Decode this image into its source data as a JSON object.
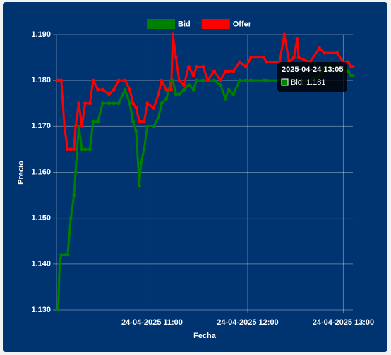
{
  "chart_data": {
    "type": "line",
    "legend": "top",
    "grid": true,
    "x_label": "Fecha",
    "y_label": "Precio",
    "x": [
      "2025-04-24 10:01",
      "2025-04-24 10:02",
      "2025-04-24 10:03",
      "2025-04-24 10:05",
      "2025-04-24 10:07",
      "2025-04-24 10:09",
      "2025-04-24 10:11",
      "2025-04-24 10:12",
      "2025-04-24 10:14",
      "2025-04-24 10:16",
      "2025-04-24 10:18",
      "2025-04-24 10:21",
      "2025-04-24 10:23",
      "2025-04-24 10:26",
      "2025-04-24 10:29",
      "2025-04-24 10:33",
      "2025-04-24 10:36",
      "2025-04-24 10:39",
      "2025-04-24 10:43",
      "2025-04-24 10:46",
      "2025-04-24 10:48",
      "2025-04-24 10:50",
      "2025-04-24 10:52",
      "2025-04-24 10:53",
      "2025-04-24 10:55",
      "2025-04-24 10:57",
      "2025-04-24 11:01",
      "2025-04-24 11:04",
      "2025-04-24 11:06",
      "2025-04-24 11:09",
      "2025-04-24 11:12",
      "2025-04-24 11:13",
      "2025-04-24 11:15",
      "2025-04-24 11:17",
      "2025-04-24 11:20",
      "2025-04-24 11:23",
      "2025-04-24 11:26",
      "2025-04-24 11:28",
      "2025-04-24 11:32",
      "2025-04-24 11:35",
      "2025-04-24 11:39",
      "2025-04-24 11:43",
      "2025-04-24 11:46",
      "2025-04-24 11:48",
      "2025-04-24 11:51",
      "2025-04-24 11:55",
      "2025-04-24 11:59",
      "2025-04-24 12:02",
      "2025-04-24 12:10",
      "2025-04-24 12:12",
      "2025-04-24 12:20",
      "2025-04-24 12:23",
      "2025-04-24 12:26",
      "2025-04-24 12:29",
      "2025-04-24 12:31",
      "2025-04-24 12:32",
      "2025-04-24 12:39",
      "2025-04-24 12:45",
      "2025-04-24 12:48",
      "2025-04-24 12:56",
      "2025-04-24 13:00",
      "2025-04-24 13:03",
      "2025-04-24 13:05",
      "2025-04-24 13:06"
    ],
    "series": [
      {
        "name": "Bid",
        "color": "#008000",
        "values": [
          1.13,
          1.14,
          1.142,
          1.142,
          1.142,
          1.15,
          1.155,
          1.16,
          1.17,
          1.165,
          1.165,
          1.165,
          1.171,
          1.171,
          1.175,
          1.175,
          1.175,
          1.175,
          1.178,
          1.175,
          1.171,
          1.169,
          1.157,
          1.162,
          1.165,
          1.17,
          1.17,
          1.172,
          1.175,
          1.176,
          1.18,
          1.18,
          1.177,
          1.177,
          1.178,
          1.179,
          1.178,
          1.18,
          1.18,
          1.18,
          1.18,
          1.179,
          1.176,
          1.178,
          1.177,
          1.18,
          1.18,
          1.18,
          1.18,
          1.18,
          1.18,
          1.18,
          1.18,
          1.18,
          1.18,
          1.18,
          1.18,
          1.181,
          1.183,
          1.183,
          1.182,
          1.182,
          1.181,
          1.181
        ]
      },
      {
        "name": "Offer",
        "color": "#ff0000",
        "values": [
          1.18,
          1.18,
          1.18,
          1.17,
          1.165,
          1.165,
          1.165,
          1.17,
          1.175,
          1.17,
          1.175,
          1.175,
          1.18,
          1.178,
          1.178,
          1.177,
          1.178,
          1.18,
          1.18,
          1.178,
          1.175,
          1.174,
          1.171,
          1.171,
          1.171,
          1.175,
          1.174,
          1.177,
          1.18,
          1.178,
          1.178,
          1.19,
          1.185,
          1.18,
          1.179,
          1.183,
          1.181,
          1.183,
          1.183,
          1.18,
          1.182,
          1.18,
          1.182,
          1.182,
          1.182,
          1.184,
          1.183,
          1.185,
          1.185,
          1.184,
          1.184,
          1.19,
          1.184,
          1.185,
          1.189,
          1.185,
          1.184,
          1.187,
          1.186,
          1.186,
          1.184,
          1.184,
          1.183,
          1.183
        ]
      }
    ],
    "xlim": [
      "2025-04-24 10:00",
      "2025-04-24 13:06"
    ],
    "xticks": [
      {
        "value": "2025-04-24 11:00",
        "label": "24-04-2025 11:00"
      },
      {
        "value": "2025-04-24 12:00",
        "label": "24-04-2025 12:00"
      },
      {
        "value": "2025-04-24 13:00",
        "label": "24-04-2025 13:00"
      }
    ],
    "ylim": [
      1.13,
      1.19
    ],
    "yticks": [
      {
        "value": 1.13,
        "label": "1.130"
      },
      {
        "value": 1.14,
        "label": "1.140"
      },
      {
        "value": 1.15,
        "label": "1.150"
      },
      {
        "value": 1.16,
        "label": "1.160"
      },
      {
        "value": 1.17,
        "label": "1.170"
      },
      {
        "value": 1.18,
        "label": "1.180"
      },
      {
        "value": 1.19,
        "label": "1.190"
      }
    ],
    "tooltip": {
      "title": "2025-04-24 13:05",
      "text": "Bid: 1.181"
    }
  }
}
